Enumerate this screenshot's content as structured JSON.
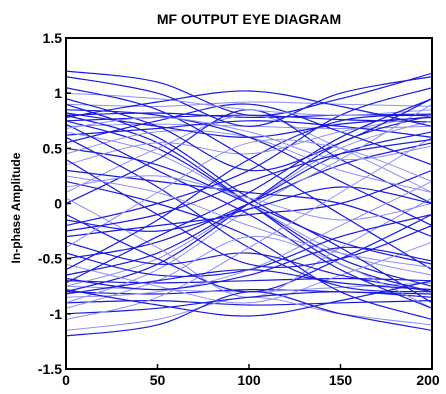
{
  "chart_data": {
    "type": "line",
    "title": "MF OUTPUT EYE DIAGRAM",
    "xlabel": "",
    "ylabel": "In-phase Amplitude",
    "xlim": [
      0,
      200
    ],
    "ylim": [
      -1.5,
      1.5
    ],
    "x_ticks": [
      0,
      50,
      100,
      150,
      200
    ],
    "y_ticks": [
      1.5,
      1,
      0.5,
      0,
      -0.5,
      -1,
      -1.5
    ],
    "x_tick_labels": [
      "0",
      "50",
      "100",
      "150",
      "200"
    ],
    "y_tick_labels": [
      "1.5",
      "1",
      "0.5",
      "0",
      "-0.5",
      "-1",
      "-1.5"
    ],
    "grid": false,
    "colors": {
      "trace_dark": "#1a1ae0",
      "trace_light": "#8f8ff5",
      "axes": "#000000"
    },
    "trace_x": [
      0,
      50,
      100,
      150,
      200
    ],
    "series": [
      {
        "values": [
          0.8,
          0.82,
          0.78,
          0.8,
          0.81
        ]
      },
      {
        "values": [
          0.75,
          0.78,
          0.8,
          0.76,
          0.74
        ]
      },
      {
        "values": [
          0.7,
          0.72,
          0.7,
          0.68,
          0.7
        ]
      },
      {
        "values": [
          0.62,
          0.68,
          0.75,
          0.7,
          0.6
        ]
      },
      {
        "values": [
          -0.8,
          -0.82,
          -0.78,
          -0.8,
          -0.82
        ]
      },
      {
        "values": [
          -0.75,
          -0.78,
          -0.8,
          -0.76,
          -0.72
        ]
      },
      {
        "values": [
          -0.7,
          -0.72,
          -0.7,
          -0.68,
          -0.7
        ]
      },
      {
        "values": [
          -0.9,
          -0.88,
          -0.92,
          -0.9,
          -0.88
        ]
      },
      {
        "values": [
          0.9,
          0.88,
          0.92,
          0.9,
          0.88
        ]
      },
      {
        "values": [
          0.8,
          0.55,
          0.0,
          -0.55,
          -0.8
        ]
      },
      {
        "values": [
          0.75,
          0.5,
          0.0,
          -0.5,
          -0.75
        ]
      },
      {
        "values": [
          0.65,
          0.45,
          0.0,
          -0.45,
          -0.65
        ]
      },
      {
        "values": [
          0.5,
          0.35,
          0.0,
          -0.35,
          -0.55
        ]
      },
      {
        "values": [
          -0.8,
          -0.55,
          0.0,
          0.55,
          0.8
        ]
      },
      {
        "values": [
          -0.75,
          -0.5,
          0.0,
          0.5,
          0.75
        ]
      },
      {
        "values": [
          -0.65,
          -0.45,
          0.0,
          0.45,
          0.65
        ]
      },
      {
        "values": [
          -0.5,
          -0.35,
          0.0,
          0.35,
          0.55
        ]
      },
      {
        "values": [
          0.1,
          0.5,
          0.8,
          0.5,
          0.1
        ]
      },
      {
        "values": [
          -0.1,
          -0.5,
          -0.8,
          -0.5,
          -0.1
        ]
      },
      {
        "values": [
          0.0,
          0.4,
          0.85,
          0.4,
          0.0
        ]
      },
      {
        "values": [
          0.05,
          -0.4,
          -0.85,
          -0.4,
          0.05
        ]
      },
      {
        "values": [
          1.2,
          1.1,
          0.8,
          0.95,
          1.18
        ]
      },
      {
        "values": [
          1.15,
          1.0,
          0.7,
          1.0,
          1.15
        ]
      },
      {
        "values": [
          -1.15,
          -1.05,
          -0.85,
          -1.0,
          -1.1
        ]
      },
      {
        "values": [
          -1.2,
          -1.1,
          -0.8,
          -1.0,
          -1.15
        ]
      },
      {
        "values": [
          0.9,
          0.6,
          0.05,
          -0.4,
          -0.9
        ]
      },
      {
        "values": [
          -0.9,
          -0.6,
          -0.05,
          0.4,
          0.9
        ]
      },
      {
        "values": [
          0.3,
          0.2,
          0.1,
          0.0,
          -0.3
        ]
      },
      {
        "values": [
          -0.3,
          -0.2,
          -0.1,
          0.0,
          0.3
        ]
      },
      {
        "values": [
          0.45,
          0.65,
          0.6,
          0.3,
          0.1
        ]
      },
      {
        "values": [
          -0.45,
          -0.65,
          -0.6,
          -0.3,
          -0.1
        ]
      },
      {
        "values": [
          0.55,
          0.75,
          0.9,
          0.65,
          0.35
        ]
      },
      {
        "values": [
          -0.55,
          -0.75,
          -0.9,
          -0.65,
          -0.35
        ]
      },
      {
        "values": [
          0.2,
          0.0,
          -0.3,
          -0.8,
          -1.05
        ]
      },
      {
        "values": [
          -0.2,
          0.0,
          0.3,
          0.8,
          1.05
        ]
      },
      {
        "values": [
          1.0,
          0.95,
          0.85,
          0.8,
          0.85
        ]
      },
      {
        "values": [
          -1.0,
          -0.95,
          -0.85,
          -0.8,
          -0.85
        ]
      },
      {
        "values": [
          0.85,
          0.8,
          0.6,
          0.2,
          -0.2
        ]
      },
      {
        "values": [
          -0.85,
          -0.8,
          -0.6,
          -0.2,
          0.2
        ]
      },
      {
        "values": [
          0.6,
          0.15,
          -0.4,
          -0.75,
          -0.8
        ]
      },
      {
        "values": [
          -0.6,
          -0.15,
          0.4,
          0.75,
          0.8
        ]
      },
      {
        "values": [
          0.35,
          0.55,
          0.45,
          0.65,
          0.8
        ]
      },
      {
        "values": [
          -0.35,
          -0.55,
          -0.45,
          -0.65,
          -0.8
        ]
      },
      {
        "values": [
          0.95,
          0.7,
          0.3,
          0.55,
          0.95
        ]
      },
      {
        "values": [
          -0.95,
          -0.7,
          -0.3,
          -0.55,
          -0.95
        ]
      },
      {
        "values": [
          0.72,
          0.3,
          -0.1,
          -0.6,
          -0.95
        ]
      },
      {
        "values": [
          -0.72,
          -0.3,
          0.1,
          0.6,
          0.95
        ]
      },
      {
        "values": [
          0.15,
          0.25,
          0.05,
          -0.15,
          0.0
        ]
      },
      {
        "values": [
          -0.15,
          -0.25,
          -0.05,
          0.15,
          0.0
        ]
      },
      {
        "values": [
          1.05,
          0.85,
          0.4,
          -0.1,
          -0.6
        ]
      },
      {
        "values": [
          -1.05,
          -0.85,
          -0.4,
          0.1,
          0.6
        ]
      },
      {
        "values": [
          0.82,
          0.7,
          0.6,
          0.72,
          0.78
        ]
      },
      {
        "values": [
          -0.82,
          -0.7,
          -0.6,
          -0.72,
          -0.78
        ]
      },
      {
        "values": [
          0.68,
          0.78,
          0.65,
          0.4,
          0.52
        ]
      },
      {
        "values": [
          -0.68,
          -0.78,
          -0.65,
          -0.4,
          -0.52
        ]
      },
      {
        "values": [
          0.4,
          -0.1,
          -0.55,
          -0.5,
          -0.2
        ]
      },
      {
        "values": [
          -0.4,
          0.1,
          0.55,
          0.5,
          0.2
        ]
      },
      {
        "values": [
          0.78,
          0.92,
          1.02,
          0.88,
          0.7
        ]
      },
      {
        "values": [
          -0.78,
          -0.92,
          -1.02,
          -0.88,
          -0.7
        ]
      },
      {
        "values": [
          0.25,
          0.1,
          -0.2,
          -0.45,
          -0.58
        ]
      },
      {
        "values": [
          -0.25,
          -0.1,
          0.2,
          0.45,
          0.58
        ]
      }
    ]
  }
}
